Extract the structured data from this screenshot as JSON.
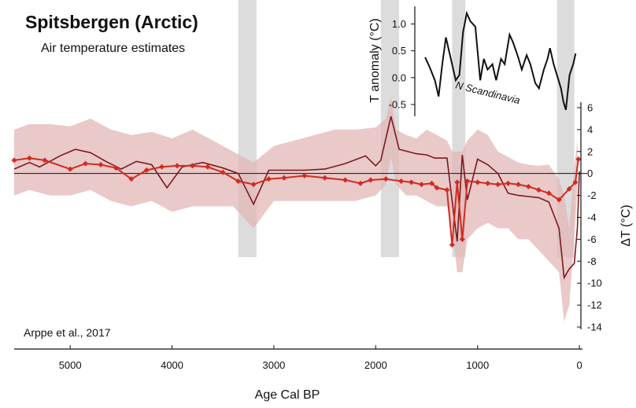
{
  "title": "Spitsbergen (Arctic)",
  "subtitle": "Air temperature estimates",
  "source": "Arppe et al., 2017",
  "colors": {
    "band": "#e3b7b7",
    "smooth_line": "#7a1a1f",
    "marker_line": "#d42a1e",
    "shade": "#d6d6d6",
    "inset_line": "#111111"
  },
  "chart_data": [
    {
      "type": "line",
      "xlabel": "Age Cal BP",
      "ylabel": "ΔT (°C)",
      "xlim": [
        5550,
        -30
      ],
      "ylim": [
        -14.5,
        7
      ],
      "x_ticks": [
        5000,
        4000,
        3000,
        2000,
        1000,
        0
      ],
      "y_ticks": [
        6,
        4,
        2,
        0,
        -2,
        -4,
        -6,
        -8,
        -10,
        -12,
        -14
      ],
      "zero_line": true,
      "shaded_periods": [
        [
          3350,
          3170
        ],
        [
          1950,
          1770
        ],
        [
          1250,
          1120
        ],
        [
          220,
          50
        ]
      ],
      "series": [
        {
          "kind": "band",
          "x": [
            5550,
            5400,
            5200,
            5000,
            4800,
            4600,
            4400,
            4200,
            4000,
            3800,
            3600,
            3400,
            3200,
            3000,
            2800,
            2600,
            2400,
            2200,
            2000,
            1900,
            1850,
            1800,
            1700,
            1600,
            1500,
            1400,
            1300,
            1250,
            1200,
            1150,
            1100,
            1000,
            900,
            800,
            700,
            600,
            500,
            400,
            300,
            200,
            150,
            100,
            50,
            20
          ],
          "upper": [
            4,
            4.5,
            4.5,
            4.3,
            5,
            4,
            3.5,
            3.8,
            3.2,
            4,
            3,
            2,
            1,
            2.5,
            3,
            3.5,
            4,
            4,
            4.2,
            5,
            7,
            4,
            3.5,
            3.2,
            4,
            3.5,
            3,
            2,
            2,
            2,
            3,
            4,
            3.5,
            2,
            1.5,
            1,
            0.8,
            0.7,
            0.8,
            -0.5,
            -2,
            -5,
            0.5,
            3
          ],
          "lower": [
            -2,
            -1.5,
            -2,
            -2,
            -1.5,
            -2.5,
            -3,
            -2.5,
            -3.5,
            -3,
            -3,
            -3,
            -5,
            -2.5,
            -2.5,
            -2.5,
            -2.5,
            -2.5,
            -2,
            -1,
            1.5,
            -1,
            -2,
            -2,
            -2.5,
            -3,
            -3,
            -5,
            -9,
            -9,
            -6,
            -5,
            -4.5,
            -5,
            -5,
            -6,
            -6,
            -7,
            -8,
            -9,
            -13.5,
            -12,
            -6,
            -1.5
          ]
        },
        {
          "kind": "line",
          "x": [
            5550,
            5400,
            5300,
            5100,
            4950,
            4800,
            4650,
            4500,
            4350,
            4200,
            4050,
            3900,
            3700,
            3500,
            3350,
            3200,
            3050,
            2900,
            2700,
            2500,
            2300,
            2100,
            2000,
            1950,
            1850,
            1770,
            1600,
            1500,
            1420,
            1300,
            1250,
            1200,
            1150,
            1100,
            1000,
            900,
            800,
            700,
            600,
            500,
            400,
            300,
            200,
            150,
            100,
            50,
            20,
            0
          ],
          "values": [
            0.4,
            1.0,
            0.6,
            1.6,
            2.2,
            1.9,
            1.1,
            0.4,
            1.1,
            0.8,
            -1.3,
            0.6,
            1.0,
            0.5,
            0.0,
            -2.8,
            0.3,
            0.3,
            0.3,
            0.4,
            0.9,
            1.6,
            0.7,
            1.2,
            5.2,
            2.2,
            1.8,
            1.7,
            1.4,
            1.4,
            -2.5,
            -6.2,
            1.7,
            -2.4,
            1.3,
            0.8,
            0.0,
            -1.8,
            -2.0,
            -2.1,
            -2.2,
            -2.6,
            -5.0,
            -9.5,
            -8.7,
            -8.2,
            -5.0,
            0.2
          ]
        },
        {
          "kind": "line-markers",
          "x": [
            5550,
            5400,
            5250,
            5000,
            4850,
            4700,
            4550,
            4400,
            4250,
            4100,
            3950,
            3800,
            3650,
            3500,
            3350,
            3200,
            3050,
            2900,
            2700,
            2500,
            2300,
            2150,
            2050,
            1900,
            1750,
            1650,
            1550,
            1450,
            1400,
            1300,
            1250,
            1200,
            1150,
            1100,
            1000,
            900,
            800,
            700,
            600,
            500,
            400,
            300,
            200,
            100,
            40,
            10
          ],
          "values": [
            1.2,
            1.4,
            1.2,
            0.4,
            0.9,
            0.8,
            0.5,
            -0.5,
            0.3,
            0.6,
            0.7,
            0.7,
            0.6,
            0.1,
            -0.7,
            -1.0,
            -0.5,
            -0.4,
            -0.2,
            -0.4,
            -0.6,
            -0.9,
            -0.6,
            -0.5,
            -0.7,
            -0.8,
            -1.0,
            -0.9,
            -1.3,
            -1.5,
            -6.5,
            -0.8,
            -6.0,
            -0.7,
            -0.8,
            -0.9,
            -1.0,
            -0.9,
            -1.0,
            -1.2,
            -1.5,
            -1.8,
            -2.4,
            -1.4,
            -0.8,
            1.3
          ]
        }
      ]
    },
    {
      "type": "line",
      "xlabel": "",
      "ylabel": "T anomaly (°C)",
      "y_ticks": [
        1.0,
        0.5,
        0.0,
        -0.5
      ],
      "y_tick_labels": [
        "1.0",
        "0.5",
        "0.0",
        "-0.5"
      ],
      "ylim": [
        -0.75,
        1.3
      ],
      "xlim": [
        1250,
        -30
      ],
      "annotation": "N Scandinavia",
      "series": [
        {
          "x": [
            1230,
            1190,
            1150,
            1120,
            1090,
            1060,
            1020,
            980,
            950,
            920,
            890,
            860,
            820,
            780,
            750,
            720,
            680,
            650,
            610,
            580,
            540,
            510,
            470,
            440,
            400,
            370,
            330,
            300,
            260,
            230,
            210,
            180,
            140,
            120,
            100,
            80,
            50,
            20,
            0
          ],
          "values": [
            0.38,
            0.18,
            -0.05,
            -0.35,
            0.25,
            0.75,
            0.35,
            -0.05,
            0.05,
            0.85,
            1.2,
            1.05,
            0.95,
            -0.05,
            0.35,
            0.15,
            0.25,
            -0.05,
            0.35,
            0.25,
            0.8,
            0.65,
            0.38,
            0.15,
            0.42,
            0.25,
            -0.1,
            -0.2,
            0.15,
            0.35,
            0.55,
            0.25,
            -0.05,
            -0.2,
            -0.45,
            -0.6,
            0.05,
            0.25,
            0.45
          ]
        }
      ]
    }
  ]
}
